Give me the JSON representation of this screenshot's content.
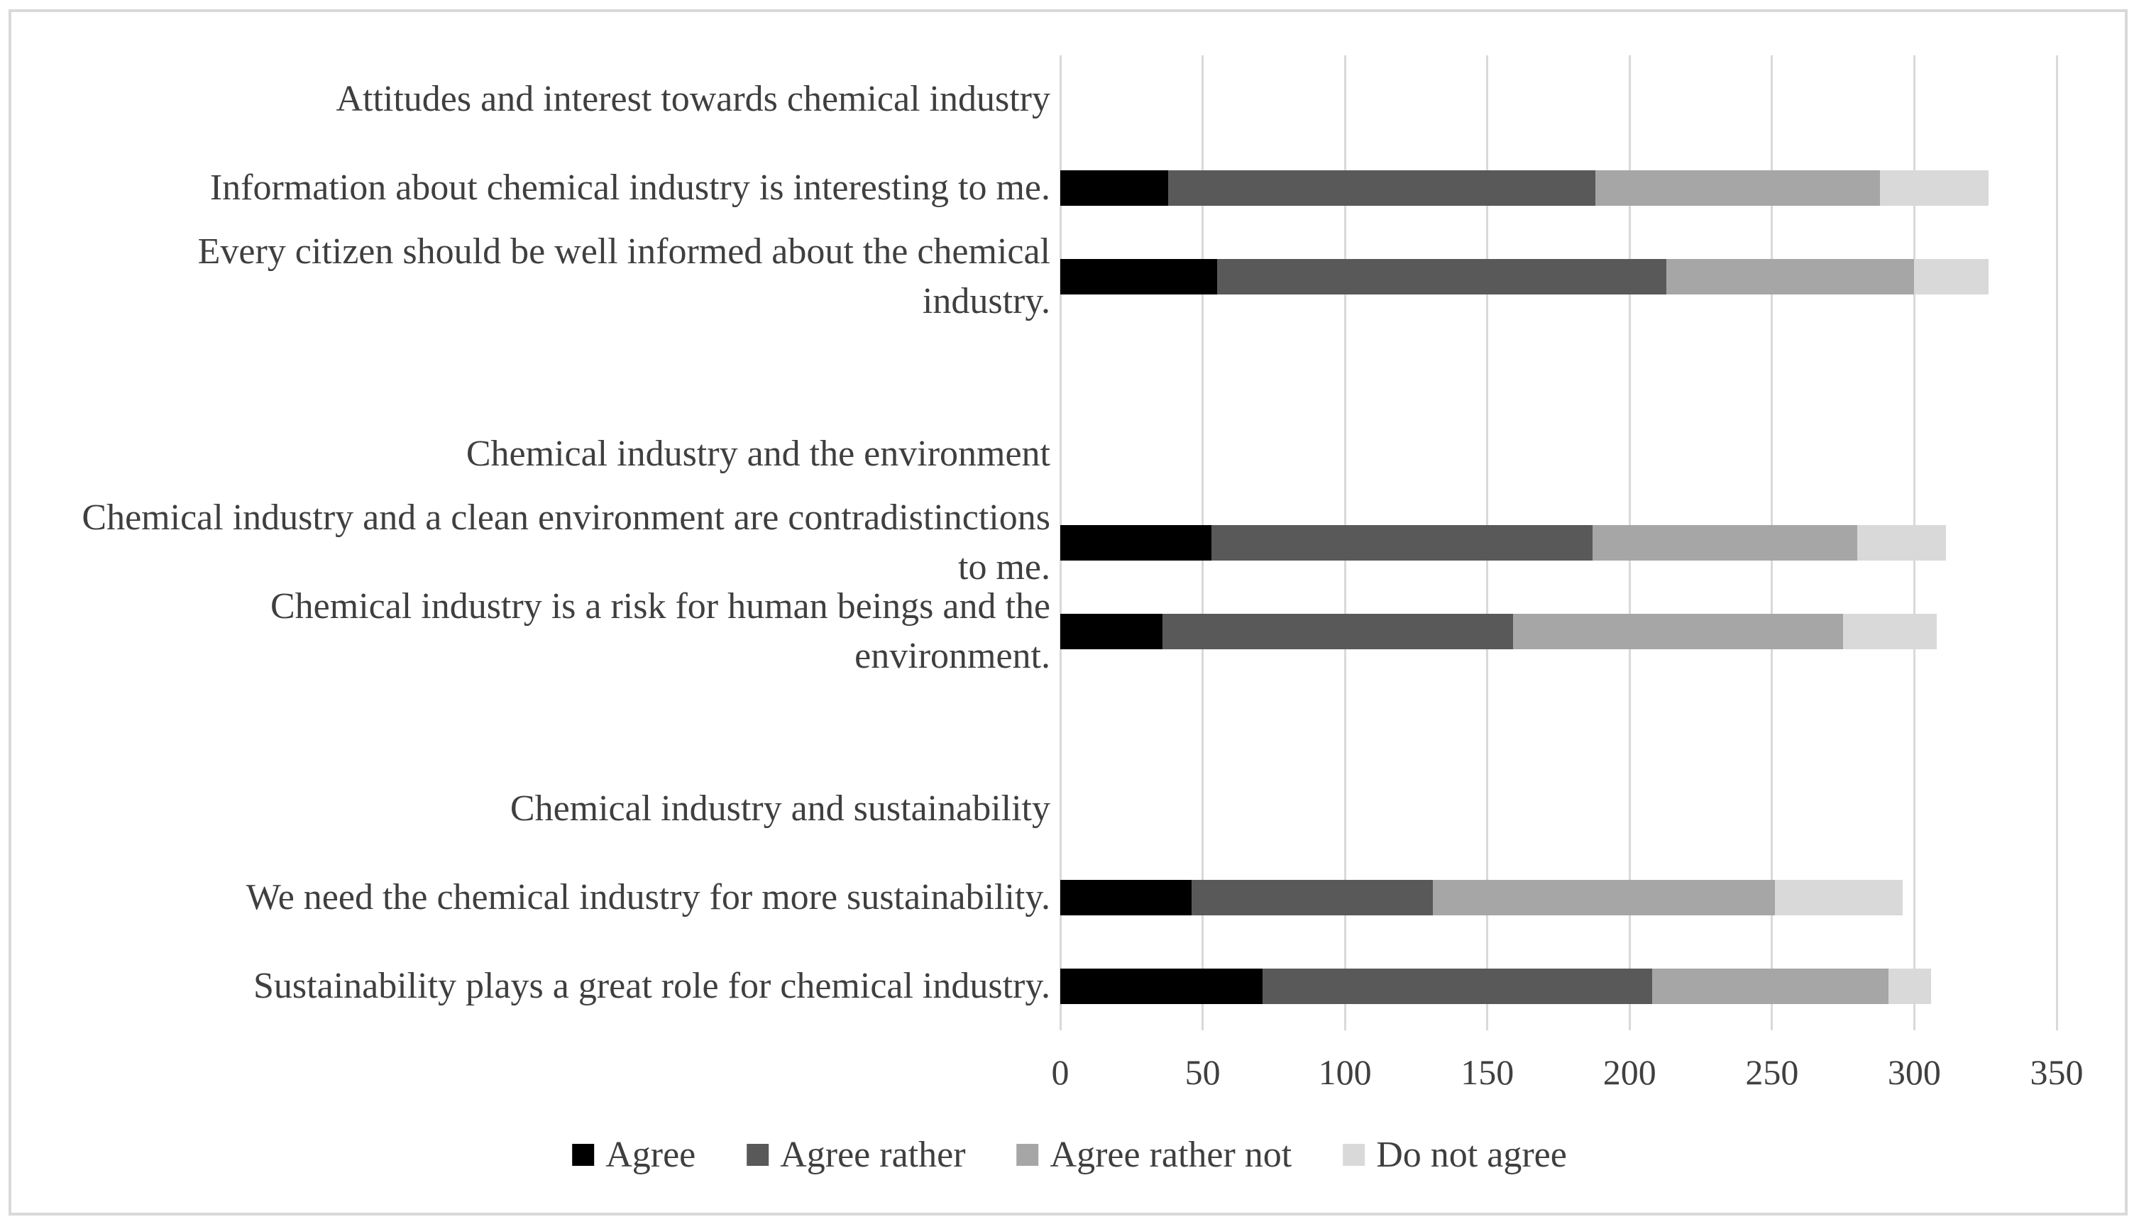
{
  "chart_data": {
    "type": "bar",
    "variant": "horizontal-stacked",
    "title": "",
    "series": [
      {
        "name": "Agree",
        "color": "#000000"
      },
      {
        "name": "Agree rather",
        "color": "#595959"
      },
      {
        "name": "Agree rather not",
        "color": "#a6a6a6"
      },
      {
        "name": "Do not agree",
        "color": "#d9d9d9"
      }
    ],
    "rows": [
      {
        "kind": "header",
        "label": "Attitudes and interest towards chemical industry"
      },
      {
        "kind": "bar",
        "label": "Information about chemical industry is interesting to me.",
        "values": [
          38,
          150,
          100,
          38
        ]
      },
      {
        "kind": "bar",
        "label": "Every citizen should be well informed about the chemical industry.",
        "values": [
          55,
          158,
          87,
          26
        ]
      },
      {
        "kind": "spacer",
        "label": ""
      },
      {
        "kind": "header",
        "label": "Chemical industry and the environment"
      },
      {
        "kind": "bar",
        "label": "Chemical industry and a clean environment are contradistinctions to me.",
        "values": [
          53,
          134,
          93,
          31
        ]
      },
      {
        "kind": "bar",
        "label": "Chemical industry is a risk for human beings and the environment.",
        "values": [
          36,
          123,
          116,
          33
        ]
      },
      {
        "kind": "spacer",
        "label": ""
      },
      {
        "kind": "header",
        "label": "Chemical industry and sustainability"
      },
      {
        "kind": "bar",
        "label": "We need the chemical industry for more sustainability.",
        "values": [
          46,
          85,
          120,
          45
        ]
      },
      {
        "kind": "bar",
        "label": "Sustainability plays a great role for chemical industry.",
        "values": [
          71,
          137,
          83,
          15
        ]
      }
    ],
    "xaxis": {
      "min": 0,
      "max": 350,
      "tick_step": 50,
      "ticks": [
        0,
        50,
        100,
        150,
        200,
        250,
        300,
        350
      ]
    },
    "legend": {
      "position": "bottom",
      "labels": [
        "Agree",
        "Agree rather",
        "Agree rather not",
        "Do not agree"
      ]
    },
    "grid": "vertical",
    "colors": {
      "gridline": "#d9d9d9",
      "text": "#3f3f3f",
      "frame_border": "#d9d9d9"
    }
  }
}
